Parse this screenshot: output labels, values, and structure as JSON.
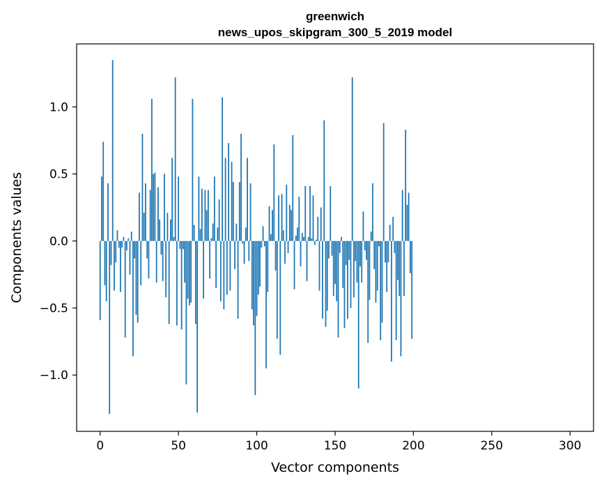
{
  "chart_data": {
    "type": "bar",
    "title": "greenwich",
    "subtitle": "news_upos_skipgram_300_5_2019 model",
    "xlabel": "Vector components",
    "ylabel": "Components values",
    "xlim": [
      -15,
      315
    ],
    "ylim": [
      -1.42,
      1.47
    ],
    "xticks": [
      0,
      50,
      100,
      150,
      200,
      250,
      300
    ],
    "xtick_labels": [
      "0",
      "50",
      "100",
      "150",
      "200",
      "250",
      "300"
    ],
    "yticks": [
      -1.0,
      -0.5,
      0.0,
      0.5,
      1.0
    ],
    "ytick_labels": [
      "−1.0",
      "−0.5",
      "0.0",
      "0.5",
      "1.0"
    ],
    "grid": false,
    "bar_color": "#1f77b4",
    "x_start": 0,
    "values": [
      -0.59,
      0.48,
      0.74,
      -0.33,
      -0.45,
      0.43,
      -1.29,
      -0.18,
      1.35,
      -0.37,
      -0.16,
      0.08,
      -0.05,
      -0.38,
      -0.05,
      0.03,
      -0.72,
      -0.07,
      0.02,
      -0.25,
      0.07,
      -0.86,
      -0.13,
      -0.55,
      -0.61,
      0.36,
      -0.33,
      0.8,
      0.21,
      0.43,
      -0.13,
      -0.28,
      0.38,
      1.06,
      0.5,
      0.51,
      -0.31,
      0.4,
      0.16,
      -0.1,
      -0.3,
      0.5,
      -0.42,
      0.21,
      -0.62,
      0.16,
      0.62,
      0.03,
      1.22,
      -0.63,
      0.48,
      -0.06,
      -0.66,
      -0.06,
      -0.31,
      -1.07,
      -0.43,
      -0.48,
      -0.46,
      1.06,
      0.12,
      -0.62,
      -1.28,
      0.48,
      0.09,
      0.39,
      -0.43,
      0.38,
      0.23,
      0.38,
      -0.28,
      0.02,
      0.13,
      0.48,
      -0.35,
      0.1,
      0.31,
      -0.45,
      1.07,
      -0.51,
      0.62,
      -0.4,
      0.73,
      -0.37,
      0.59,
      0.44,
      -0.21,
      0.13,
      -0.58,
      0.44,
      0.8,
      -0.02,
      -0.17,
      0.1,
      0.62,
      -0.15,
      0.43,
      -0.51,
      -0.63,
      -1.15,
      -0.56,
      -0.4,
      -0.34,
      -0.05,
      0.11,
      -0.04,
      -0.95,
      -0.38,
      0.26,
      0.05,
      0.23,
      0.72,
      -0.22,
      -0.73,
      0.34,
      -0.85,
      0.35,
      0.08,
      -0.17,
      0.42,
      -0.09,
      0.27,
      0.23,
      0.79,
      -0.36,
      0.04,
      0.1,
      0.33,
      -0.19,
      0.06,
      0.03,
      0.41,
      -0.3,
      0.03,
      0.41,
      0.02,
      0.34,
      -0.03,
      0.01,
      0.18,
      -0.37,
      0.25,
      -0.58,
      0.9,
      -0.64,
      -0.52,
      -0.13,
      0.41,
      -0.11,
      -0.41,
      -0.32,
      -0.45,
      -0.72,
      -0.09,
      0.03,
      -0.35,
      -0.65,
      -0.18,
      -0.58,
      -0.14,
      -0.5,
      1.22,
      -0.42,
      -0.15,
      -0.31,
      -1.1,
      -0.19,
      -0.31,
      0.22,
      -0.07,
      -0.14,
      -0.76,
      -0.44,
      0.07,
      0.43,
      -0.21,
      -0.46,
      -0.37,
      -0.04,
      -0.74,
      -0.61,
      0.88,
      -0.16,
      -0.38,
      -0.16,
      0.12,
      -0.9,
      0.18,
      -0.09,
      -0.74,
      -0.29,
      -0.41,
      -0.86,
      0.38,
      -0.41,
      0.83,
      0.27,
      0.36,
      -0.24,
      -0.73
    ]
  }
}
